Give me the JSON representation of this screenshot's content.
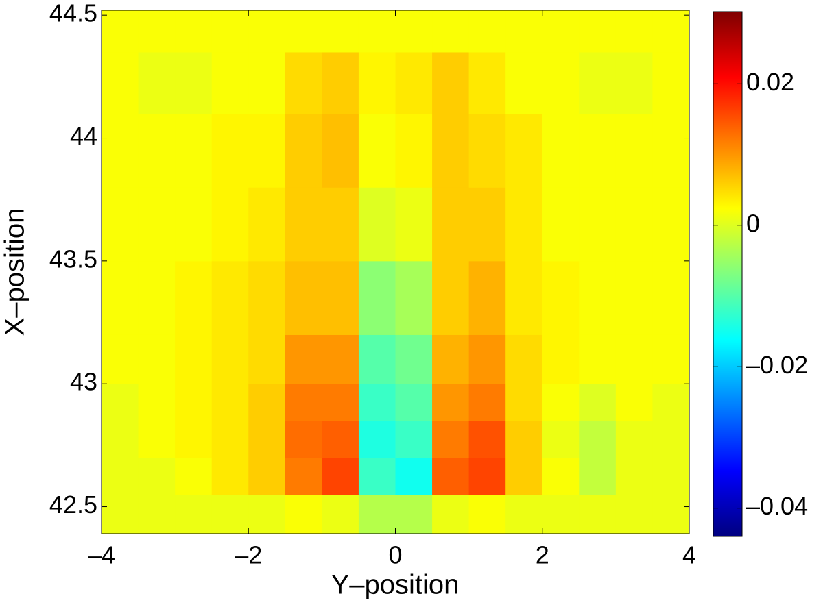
{
  "chart_data": {
    "type": "heatmap",
    "xlabel": "Y–position",
    "ylabel": "X–position",
    "xlim": [
      -4,
      4
    ],
    "xticks": [
      {
        "value": -4,
        "label": "–4"
      },
      {
        "value": -2,
        "label": "–2"
      },
      0,
      2,
      4
    ],
    "ylim": [
      42.39,
      44.52
    ],
    "yticks": [
      42.5,
      43,
      43.5,
      44,
      44.5
    ],
    "colormap": "jet",
    "clim": [
      -0.044,
      0.0302
    ],
    "cticks": [
      {
        "value": -0.04,
        "label": "–0.04"
      },
      {
        "value": -0.02,
        "label": "–0.02"
      },
      0,
      0.02
    ],
    "xbins": [
      -4,
      -3.5,
      -3,
      -2.5,
      -2,
      -1.5,
      -1,
      -0.5,
      0,
      0.5,
      1,
      1.5,
      2,
      2.5,
      3,
      3.5,
      4
    ],
    "ybins": [
      42.39,
      42.55,
      42.7,
      42.85,
      43.0,
      43.2,
      43.5,
      43.8,
      44.1,
      44.35,
      44.52
    ],
    "values": [
      [
        0.001,
        0.001,
        0.001,
        0.001,
        0.001,
        0.002,
        0.001,
        -0.003,
        -0.003,
        0.001,
        0.002,
        0.001,
        0.001,
        0.001,
        0.001,
        0.001
      ],
      [
        0.001,
        0.001,
        0.002,
        0.004,
        0.006,
        0.012,
        0.016,
        -0.012,
        -0.015,
        0.014,
        0.016,
        0.006,
        0.002,
        -0.002,
        0.001,
        0.001
      ],
      [
        0.001,
        0.002,
        0.003,
        0.004,
        0.006,
        0.013,
        0.014,
        -0.014,
        -0.012,
        0.012,
        0.015,
        0.006,
        0.001,
        -0.002,
        0.001,
        0.001
      ],
      [
        0.001,
        0.002,
        0.003,
        0.004,
        0.006,
        0.012,
        0.012,
        -0.012,
        -0.01,
        0.01,
        0.012,
        0.005,
        0.002,
        0,
        0.002,
        0.001
      ],
      [
        0.002,
        0.002,
        0.003,
        0.004,
        0.005,
        0.01,
        0.01,
        -0.01,
        -0.008,
        0.008,
        0.01,
        0.005,
        0.003,
        0.002,
        0.002,
        0.002
      ],
      [
        0.002,
        0.002,
        0.003,
        0.004,
        0.005,
        0.007,
        0.007,
        -0.006,
        -0.004,
        0.006,
        0.008,
        0.004,
        0.003,
        0.002,
        0.002,
        0.002
      ],
      [
        0.002,
        0.002,
        0.002,
        0.003,
        0.004,
        0.006,
        0.006,
        0,
        0.001,
        0.006,
        0.006,
        0.004,
        0.002,
        0.002,
        0.002,
        0.002
      ],
      [
        0.002,
        0.002,
        0.002,
        0.003,
        0.003,
        0.006,
        0.007,
        0.002,
        0.003,
        0.006,
        0.005,
        0.004,
        0.002,
        0.002,
        0.002,
        0.002
      ],
      [
        0.002,
        0.001,
        0.001,
        0.002,
        0.002,
        0.005,
        0.006,
        0.003,
        0.004,
        0.006,
        0.004,
        0.002,
        0.002,
        0.001,
        0.001,
        0.002
      ],
      [
        0.002,
        0.002,
        0.002,
        0.002,
        0.002,
        0.002,
        0.002,
        0.002,
        0.002,
        0.002,
        0.002,
        0.002,
        0.002,
        0.002,
        0.002,
        0.002
      ]
    ]
  }
}
